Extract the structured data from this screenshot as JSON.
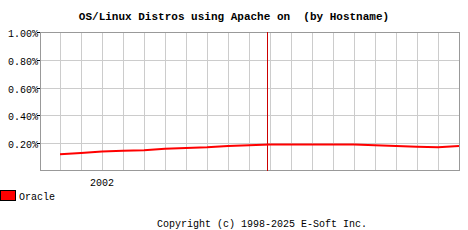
{
  "chart_data": {
    "type": "line",
    "title": "OS/Linux Distros using Apache on  (by Hostname)",
    "categories": [
      null,
      null,
      "2002",
      null,
      null,
      null,
      null,
      null,
      null,
      null,
      null,
      null,
      null,
      null,
      null,
      null,
      null,
      null,
      null,
      null
    ],
    "series": [
      {
        "name": "Oracle",
        "color": "#ff0000",
        "values": [
          0.12,
          0.13,
          0.14,
          0.145,
          0.15,
          0.16,
          0.165,
          0.17,
          0.18,
          0.185,
          0.19,
          0.19,
          0.19,
          0.19,
          0.19,
          0.185,
          0.18,
          0.175,
          0.17,
          0.18
        ]
      }
    ],
    "ylim": [
      0,
      1
    ],
    "yticks": [
      {
        "value": 0.2,
        "label": "0.20%"
      },
      {
        "value": 0.4,
        "label": "0.40%"
      },
      {
        "value": 0.6,
        "label": "0.60%"
      },
      {
        "value": 0.8,
        "label": "0.80%"
      },
      {
        "value": 1,
        "label": "1.00%"
      }
    ],
    "grid": true,
    "legend": "bottom-left",
    "annotations": [
      "Copyright (c) 1998-2025 E-Soft Inc."
    ]
  }
}
